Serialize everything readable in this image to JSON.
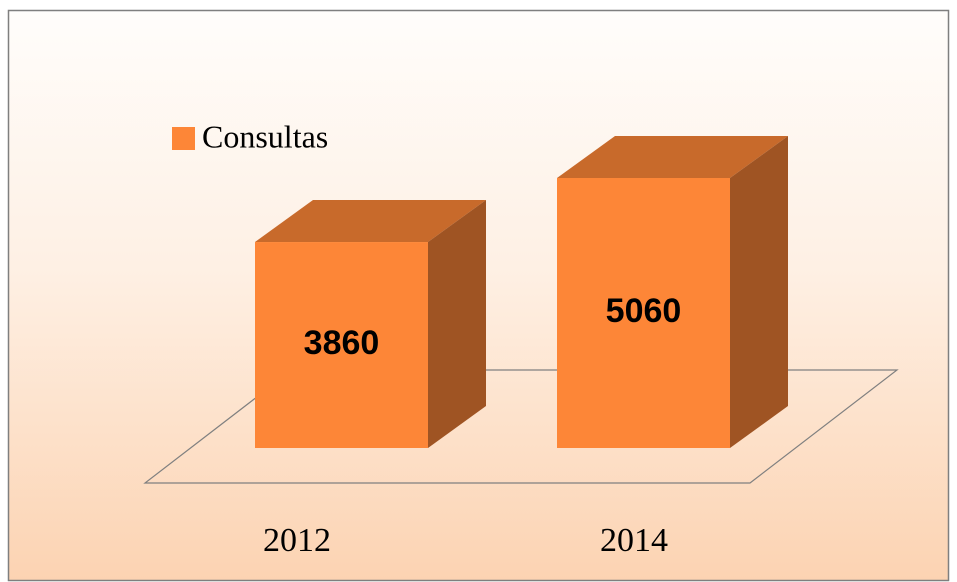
{
  "chart_data": {
    "type": "bar3d",
    "categories": [
      "2012",
      "2014"
    ],
    "series": [
      {
        "name": "Consultas",
        "color": "#fd8637",
        "values": [
          3860,
          5060
        ]
      }
    ]
  }
}
